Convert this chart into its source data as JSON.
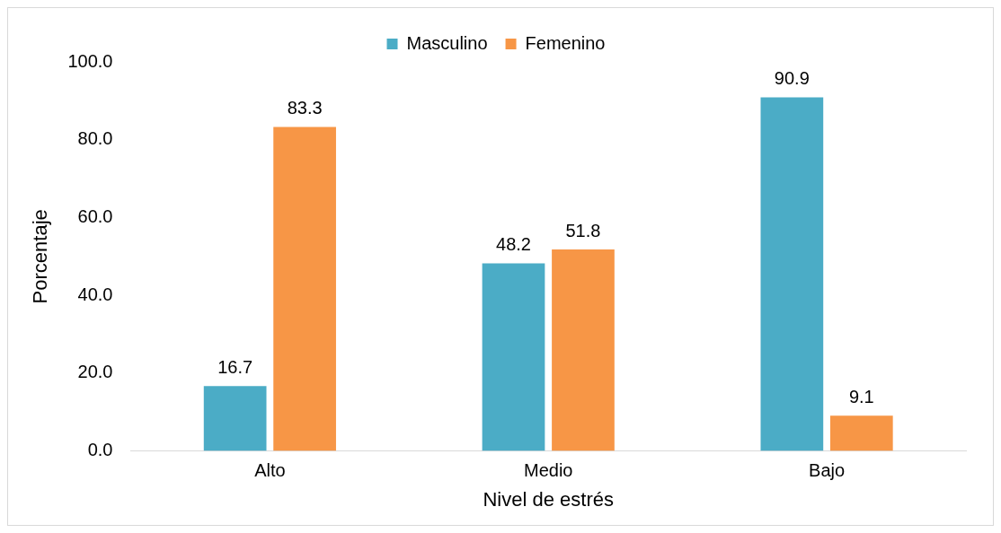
{
  "chart_data": {
    "type": "bar",
    "xlabel": "Nivel de estrés",
    "ylabel": "Porcentaje",
    "categories": [
      "Alto",
      "Medio",
      "Bajo"
    ],
    "series": [
      {
        "name": "Masculino",
        "color": "#4bacc6",
        "values": [
          16.7,
          48.2,
          90.9
        ]
      },
      {
        "name": "Femenino",
        "color": "#f79646",
        "values": [
          83.3,
          51.8,
          9.1
        ]
      }
    ],
    "ylim": [
      0,
      100
    ],
    "yticks": [
      {
        "value": 0,
        "label": "0.0"
      },
      {
        "value": 20,
        "label": "20.0"
      },
      {
        "value": 40,
        "label": "40.0"
      },
      {
        "value": 60,
        "label": "60.0"
      },
      {
        "value": 80,
        "label": "80.0"
      },
      {
        "value": 100,
        "label": "100.0"
      }
    ],
    "grid": false,
    "legend": "top",
    "data_labels": true
  }
}
